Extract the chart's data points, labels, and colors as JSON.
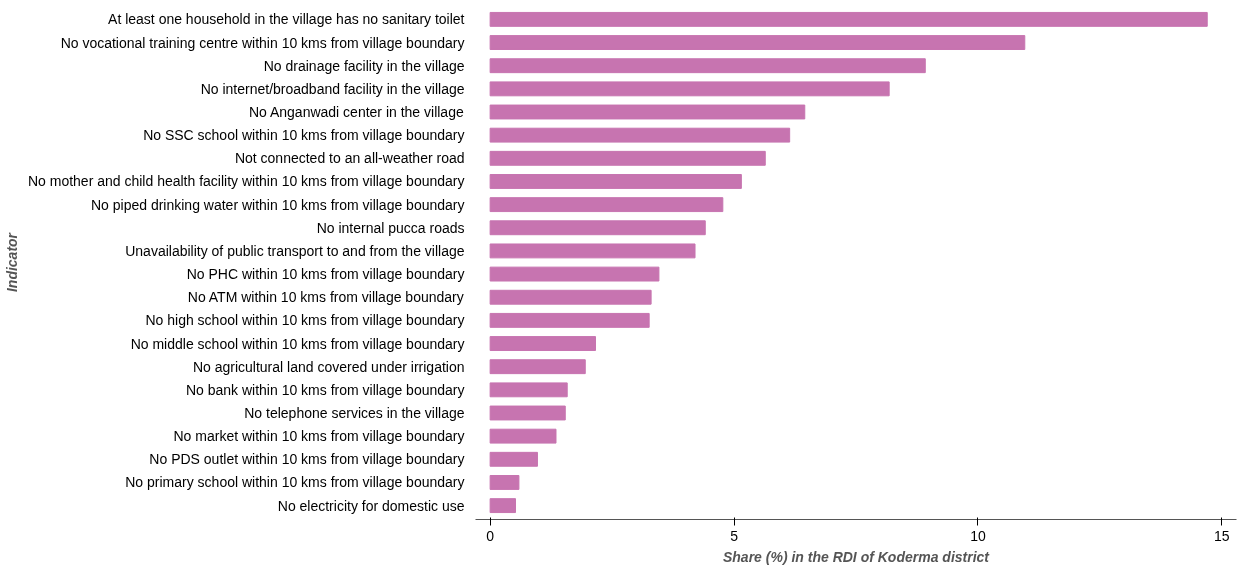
{
  "chart_data": {
    "type": "bar",
    "orientation": "horizontal",
    "xlabel": "Share (%) in the RDI of Koderma district",
    "ylabel": "Indicator",
    "categories": [
      "At least one household in the village has no sanitary toilet",
      "No vocational training centre within 10 kms from village boundary",
      "No drainage facility in the village",
      "No internet/broadband facility in the village",
      "No Anganwadi center in the village",
      "No SSC school within 10 kms from village boundary",
      "Not connected to an all-weather road",
      "No mother and child health facility within 10 kms from village boundary",
      "No piped drinking water within 10 kms from village boundary",
      "No internal pucca roads",
      "Unavailability of public transport to and from the village",
      "No PHC within 10 kms from village boundary",
      "No ATM within 10 kms from village boundary",
      "No high school within 10 kms from village boundary",
      "No middle school within 10 kms from village boundary",
      "No agricultural land covered under irrigation",
      "No bank within 10 kms from village boundary",
      "No telephone services in the village",
      "No market within 10 kms from village boundary",
      "No PDS outlet within 10 kms from village boundary",
      "No primary school within 10 kms from village boundary",
      "No electricity for domestic use"
    ],
    "values": [
      14.7,
      10.96,
      8.92,
      8.18,
      6.45,
      6.14,
      5.64,
      5.15,
      4.77,
      4.41,
      4.2,
      3.46,
      3.3,
      3.26,
      2.16,
      1.95,
      1.58,
      1.54,
      1.35,
      0.97,
      0.59,
      0.52
    ],
    "color": "#c774b0",
    "xlim": [
      -0.3,
      15.3
    ],
    "xticks": [
      0,
      5,
      10,
      15
    ],
    "grid": false
  }
}
